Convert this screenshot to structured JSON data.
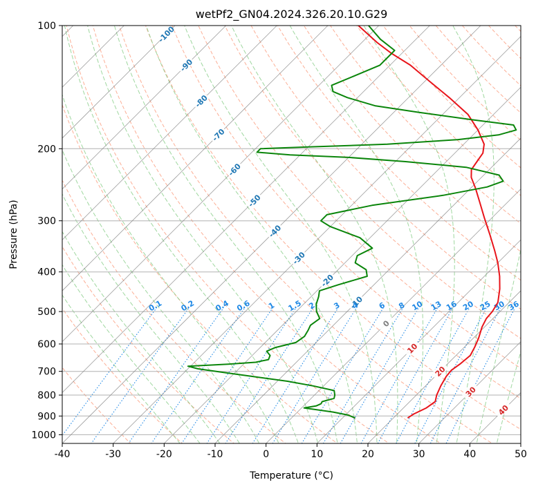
{
  "chart_data": {
    "type": "line",
    "title": "wetPf2_GN04.2024.326.20.10.G29",
    "xlabel": "Temperature (°C)",
    "ylabel": "Pressure (hPa)",
    "xlim": [
      -40,
      50
    ],
    "ylim": [
      1050,
      100
    ],
    "y_scale": "log",
    "skew": "skew-T log-p diagram",
    "grid": true,
    "x_ticks": [
      -40,
      -30,
      -20,
      -10,
      0,
      10,
      20,
      30,
      40,
      50
    ],
    "y_ticks": [
      100,
      200,
      300,
      400,
      500,
      600,
      700,
      800,
      900,
      1000
    ],
    "series": [
      {
        "name": "",
        "role": "temperature",
        "color": "#e8141a",
        "points": [
          {
            "t": 22.8,
            "p": 910
          },
          {
            "t": 23.2,
            "p": 890
          },
          {
            "t": 24.5,
            "p": 860
          },
          {
            "t": 25.0,
            "p": 830
          },
          {
            "t": 24.0,
            "p": 800
          },
          {
            "t": 23.0,
            "p": 760
          },
          {
            "t": 22.2,
            "p": 720
          },
          {
            "t": 22.0,
            "p": 695
          },
          {
            "t": 22.5,
            "p": 670
          },
          {
            "t": 22.8,
            "p": 640
          },
          {
            "t": 22.0,
            "p": 610
          },
          {
            "t": 21.0,
            "p": 580
          },
          {
            "t": 19.5,
            "p": 545
          },
          {
            "t": 18.7,
            "p": 520
          },
          {
            "t": 18.5,
            "p": 500
          },
          {
            "t": 17.8,
            "p": 475
          },
          {
            "t": 15.5,
            "p": 440
          },
          {
            "t": 13.0,
            "p": 410
          },
          {
            "t": 10.0,
            "p": 380
          },
          {
            "t": 7.0,
            "p": 355
          },
          {
            "t": 3.0,
            "p": 325
          },
          {
            "t": -1.5,
            "p": 295
          },
          {
            "t": -5.5,
            "p": 270
          },
          {
            "t": -9.0,
            "p": 250
          },
          {
            "t": -12.0,
            "p": 235
          },
          {
            "t": -13.5,
            "p": 225
          },
          {
            "t": -14.0,
            "p": 215
          },
          {
            "t": -14.5,
            "p": 205
          },
          {
            "t": -16.0,
            "p": 195
          },
          {
            "t": -20.0,
            "p": 180
          },
          {
            "t": -25.0,
            "p": 165
          },
          {
            "t": -32.0,
            "p": 150
          },
          {
            "t": -39.0,
            "p": 137
          },
          {
            "t": -46.0,
            "p": 125
          },
          {
            "t": -52.0,
            "p": 117
          },
          {
            "t": -57.0,
            "p": 110
          },
          {
            "t": -64.0,
            "p": 100
          }
        ]
      },
      {
        "name": "",
        "role": "dewpoint",
        "color": "#0a850a",
        "points": [
          {
            "t": 12.5,
            "p": 910
          },
          {
            "t": 10.5,
            "p": 895
          },
          {
            "t": 7.0,
            "p": 880
          },
          {
            "t": 0.5,
            "p": 860
          },
          {
            "t": 1.5,
            "p": 855
          },
          {
            "t": 2.5,
            "p": 850
          },
          {
            "t": 3.0,
            "p": 840
          },
          {
            "t": 2.8,
            "p": 830
          },
          {
            "t": 4.5,
            "p": 815
          },
          {
            "t": 4.0,
            "p": 800
          },
          {
            "t": 3.0,
            "p": 780
          },
          {
            "t": -2.0,
            "p": 760
          },
          {
            "t": -8.0,
            "p": 740
          },
          {
            "t": -16.0,
            "p": 720
          },
          {
            "t": -22.0,
            "p": 705
          },
          {
            "t": -28.0,
            "p": 690
          },
          {
            "t": -30.5,
            "p": 680
          },
          {
            "t": -23.0,
            "p": 672
          },
          {
            "t": -18.0,
            "p": 665
          },
          {
            "t": -16.0,
            "p": 655
          },
          {
            "t": -16.5,
            "p": 640
          },
          {
            "t": -18.0,
            "p": 625
          },
          {
            "t": -17.0,
            "p": 612
          },
          {
            "t": -14.0,
            "p": 595
          },
          {
            "t": -13.5,
            "p": 575
          },
          {
            "t": -14.0,
            "p": 555
          },
          {
            "t": -14.5,
            "p": 540
          },
          {
            "t": -14.0,
            "p": 520
          },
          {
            "t": -16.0,
            "p": 500
          },
          {
            "t": -17.5,
            "p": 480
          },
          {
            "t": -18.5,
            "p": 460
          },
          {
            "t": -19.5,
            "p": 445
          },
          {
            "t": -17.0,
            "p": 430
          },
          {
            "t": -13.0,
            "p": 410
          },
          {
            "t": -14.5,
            "p": 395
          },
          {
            "t": -18.0,
            "p": 380
          },
          {
            "t": -19.0,
            "p": 365
          },
          {
            "t": -17.5,
            "p": 350
          },
          {
            "t": -22.0,
            "p": 330
          },
          {
            "t": -30.0,
            "p": 310
          },
          {
            "t": -33.0,
            "p": 300
          },
          {
            "t": -33.0,
            "p": 290
          },
          {
            "t": -26.0,
            "p": 275
          },
          {
            "t": -14.0,
            "p": 260
          },
          {
            "t": -7.0,
            "p": 248
          },
          {
            "t": -5.0,
            "p": 240
          },
          {
            "t": -7.0,
            "p": 232
          },
          {
            "t": -15.0,
            "p": 222
          },
          {
            "t": -28.0,
            "p": 215
          },
          {
            "t": -40.0,
            "p": 210
          },
          {
            "t": -52.0,
            "p": 207
          },
          {
            "t": -59.0,
            "p": 204
          },
          {
            "t": -59.0,
            "p": 200
          },
          {
            "t": -50.0,
            "p": 198
          },
          {
            "t": -35.0,
            "p": 195
          },
          {
            "t": -22.0,
            "p": 190
          },
          {
            "t": -15.0,
            "p": 185
          },
          {
            "t": -12.5,
            "p": 180
          },
          {
            "t": -14.0,
            "p": 175
          },
          {
            "t": -23.0,
            "p": 170
          },
          {
            "t": -35.0,
            "p": 163
          },
          {
            "t": -45.0,
            "p": 157
          },
          {
            "t": -52.0,
            "p": 150
          },
          {
            "t": -56.0,
            "p": 145
          },
          {
            "t": -57.5,
            "p": 140
          },
          {
            "t": -55.0,
            "p": 133
          },
          {
            "t": -52.0,
            "p": 125
          },
          {
            "t": -52.0,
            "p": 115
          },
          {
            "t": -57.0,
            "p": 108
          },
          {
            "t": -62.0,
            "p": 100
          }
        ]
      }
    ],
    "isotherm_labels": [
      {
        "text": "-100",
        "t": -100,
        "p": 105
      },
      {
        "text": "-90",
        "t": -90,
        "p": 125
      },
      {
        "text": "-80",
        "t": -80,
        "p": 153
      },
      {
        "text": "-70",
        "t": -70,
        "p": 185
      },
      {
        "text": "-60",
        "t": -60,
        "p": 225
      },
      {
        "text": "-50",
        "t": -50,
        "p": 268
      },
      {
        "text": "-40",
        "t": -40,
        "p": 318
      },
      {
        "text": "-30",
        "t": -30,
        "p": 370
      },
      {
        "text": "-20",
        "t": -20,
        "p": 420
      },
      {
        "text": "-10",
        "t": -10,
        "p": 475
      },
      {
        "text": "0",
        "t": 0,
        "p": 535
      },
      {
        "text": "10",
        "t": 10,
        "p": 615
      },
      {
        "text": "20",
        "t": 20,
        "p": 700
      },
      {
        "text": "30",
        "t": 30,
        "p": 785
      },
      {
        "text": "40",
        "t": 40,
        "p": 870
      }
    ],
    "mixing_ratio_labels": [
      "0.1",
      "0.2",
      "0.4",
      "0.6",
      "1",
      "1.5",
      "2",
      "3",
      "4",
      "6",
      "8",
      "10",
      "13",
      "16",
      "20",
      "25",
      "30",
      "36"
    ],
    "mixing_ratio_label_pressure": 490,
    "colors": {
      "isotherm": "#7f7f7f",
      "isotherm_label_cold": "#1f77b4",
      "isotherm_label_zero": "#7f7f7f",
      "isotherm_label_warm": "#d62728",
      "dry_adiabat": "#fca082",
      "moist_adiabat": "#7fc97f",
      "mixing_ratio": "#1e88e5",
      "isobar": "#b0b0b0",
      "frame": "#000000"
    }
  }
}
